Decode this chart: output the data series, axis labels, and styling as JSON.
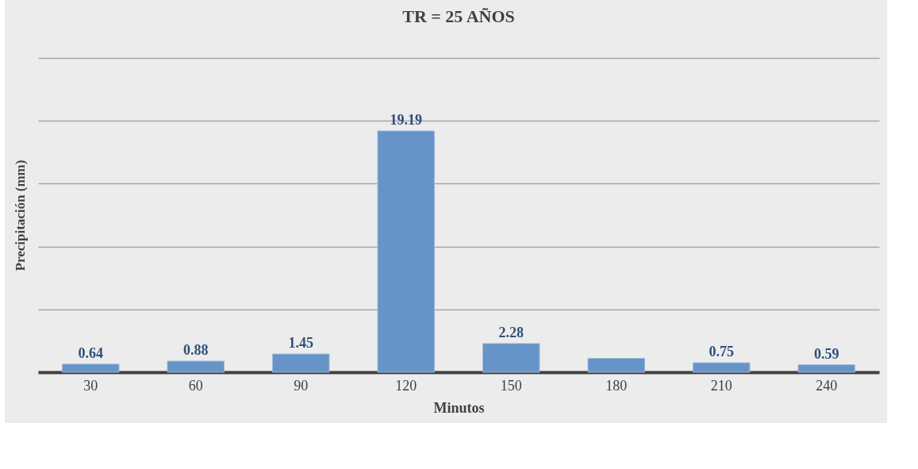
{
  "chart_data": {
    "type": "bar",
    "title": "TR = 25 AÑOS",
    "xlabel": "Minutos",
    "ylabel": "Precipitación (mm)",
    "categories": [
      "30",
      "60",
      "90",
      "120",
      "150",
      "180",
      "210",
      "240"
    ],
    "values": [
      0.64,
      0.88,
      1.45,
      19.19,
      2.28,
      1.1,
      0.75,
      0.59
    ],
    "value_labels": [
      "0.64",
      "0.88",
      "1.45",
      "19.19",
      "2.28",
      null,
      "0.75",
      "0.59"
    ],
    "color": "#6794c8",
    "ylim": [
      0,
      25
    ],
    "yticks": [
      {
        "value": 0,
        "label": null
      },
      {
        "value": 5,
        "label": null
      },
      {
        "value": 10,
        "label": null
      },
      {
        "value": 15,
        "label": null
      },
      {
        "value": 20,
        "label": null
      },
      {
        "value": 25,
        "label": null
      }
    ],
    "grid": "y",
    "tick_labels": "x"
  }
}
